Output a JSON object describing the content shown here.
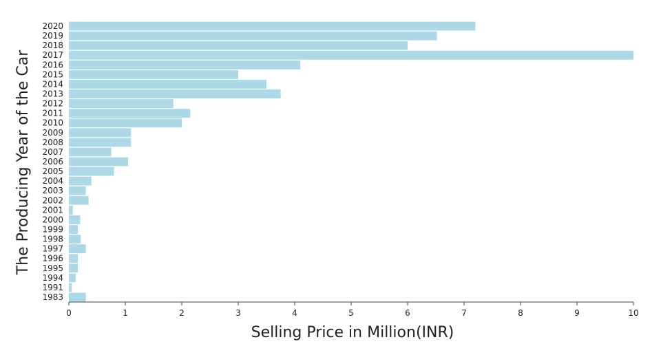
{
  "chart_data": {
    "type": "bar",
    "orientation": "horizontal",
    "title": "",
    "xlabel": "Selling Price in Million(INR)",
    "ylabel": "The Producing Year of the Car",
    "xlim": [
      0,
      10
    ],
    "xticks": [
      "0",
      "1",
      "2",
      "3",
      "4",
      "5",
      "6",
      "7",
      "8",
      "9",
      "10"
    ],
    "grid": false,
    "bar_color": "#add8e6",
    "categories": [
      "2020",
      "2019",
      "2018",
      "2017",
      "2016",
      "2015",
      "2014",
      "2013",
      "2012",
      "2011",
      "2010",
      "2009",
      "2008",
      "2007",
      "2006",
      "2005",
      "2004",
      "2003",
      "2002",
      "2001",
      "2000",
      "1999",
      "1998",
      "1997",
      "1996",
      "1995",
      "1994",
      "1991",
      "1983"
    ],
    "values": [
      7.2,
      6.52,
      6.0,
      10.0,
      4.1,
      3.0,
      3.5,
      3.75,
      1.85,
      2.15,
      2.0,
      1.1,
      1.1,
      0.75,
      1.05,
      0.8,
      0.4,
      0.3,
      0.35,
      0.07,
      0.2,
      0.16,
      0.21,
      0.3,
      0.16,
      0.16,
      0.12,
      0.05,
      0.3
    ]
  }
}
